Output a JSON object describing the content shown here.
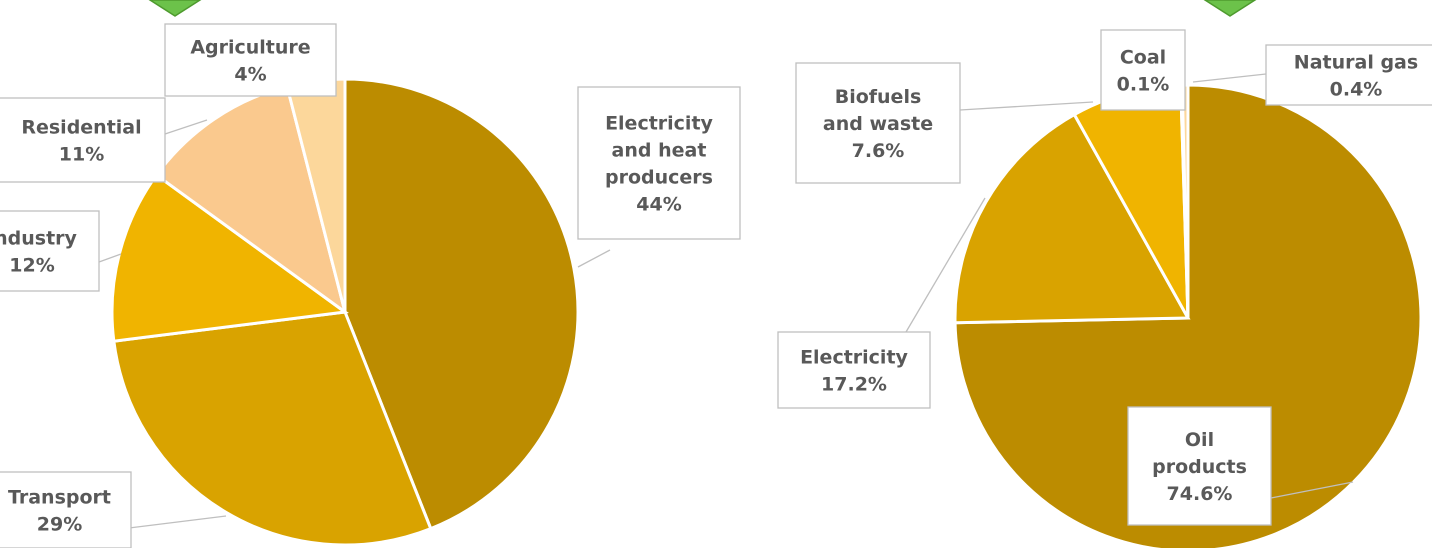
{
  "colors": {
    "dark_gold": "#BC8C00",
    "mid_gold": "#D9A300",
    "bright_gold": "#F0B400",
    "light_tan": "#FAC98E",
    "pale_tan": "#FCD79B",
    "accent_green": "#6CC24A"
  },
  "chart_data": [
    {
      "type": "pie",
      "title": "",
      "slices": [
        {
          "label": "Electricity and heat producers",
          "value": 44,
          "display": "44%",
          "color": "#BC8C00"
        },
        {
          "label": "Transport",
          "value": 29,
          "display": "29%",
          "color": "#D9A300"
        },
        {
          "label": "Industry",
          "value": 12,
          "display": "12%",
          "color": "#F0B400"
        },
        {
          "label": "Residential",
          "value": 11,
          "display": "11%",
          "color": "#FAC98E"
        },
        {
          "label": "Agriculture",
          "value": 4,
          "display": "4%",
          "color": "#FCD79B"
        }
      ]
    },
    {
      "type": "pie",
      "title": "",
      "slices": [
        {
          "label": "Oil products",
          "value": 74.6,
          "display": "74.6%",
          "color": "#BC8C00"
        },
        {
          "label": "Electricity",
          "value": 17.2,
          "display": "17.2%",
          "color": "#D9A300"
        },
        {
          "label": "Biofuels and waste",
          "value": 7.6,
          "display": "7.6%",
          "color": "#F0B400"
        },
        {
          "label": "Coal",
          "value": 0.1,
          "display": "0.1%",
          "color": "#FAC98E"
        },
        {
          "label": "Natural gas",
          "value": 0.4,
          "display": "0.4%",
          "color": "#FCD79B"
        }
      ]
    }
  ]
}
